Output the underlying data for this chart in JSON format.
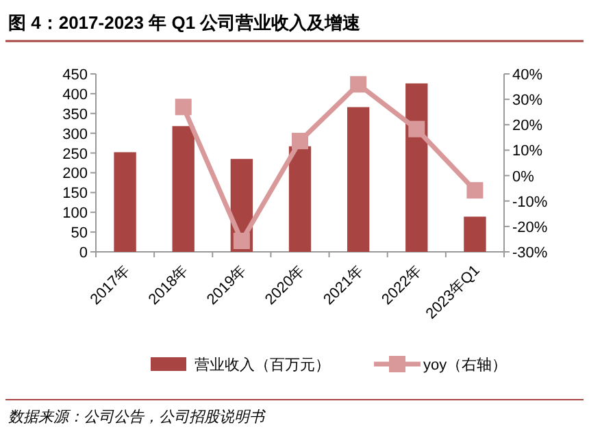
{
  "chart_data": {
    "type": "bar",
    "title": "图 4：2017-2023 年 Q1 公司营业收入及增速",
    "categories": [
      "2017年",
      "2018年",
      "2019年",
      "2020年",
      "2021年",
      "2022年",
      "2023年Q1"
    ],
    "series": [
      {
        "name": "营业收入（百万元）",
        "color": "#a84442",
        "values": [
          252,
          318,
          235,
          267,
          366,
          426,
          89
        ]
      },
      {
        "name": "yoy（右轴）",
        "type": "line",
        "axis": "y2",
        "color": "#d9999a",
        "marker": "square",
        "values": [
          null,
          27,
          -25.7,
          13.6,
          35.9,
          18.3,
          -5.8
        ]
      }
    ],
    "ylim": [
      0,
      450
    ],
    "yticks": [
      0,
      50,
      100,
      150,
      200,
      250,
      300,
      350,
      400,
      450
    ],
    "y2lim": [
      -30,
      40
    ],
    "y2ticks": [
      {
        "value": -30,
        "label": "-30%"
      },
      {
        "value": -20,
        "label": "-20%"
      },
      {
        "value": -10,
        "label": "-10%"
      },
      {
        "value": 0,
        "label": "0%"
      },
      {
        "value": 10,
        "label": "10%"
      },
      {
        "value": 20,
        "label": "20%"
      },
      {
        "value": 30,
        "label": "30%"
      },
      {
        "value": 40,
        "label": "40%"
      }
    ],
    "legend": "bottom",
    "annotations": [
      "数据来源：公司公告，公司招股说明书"
    ]
  }
}
